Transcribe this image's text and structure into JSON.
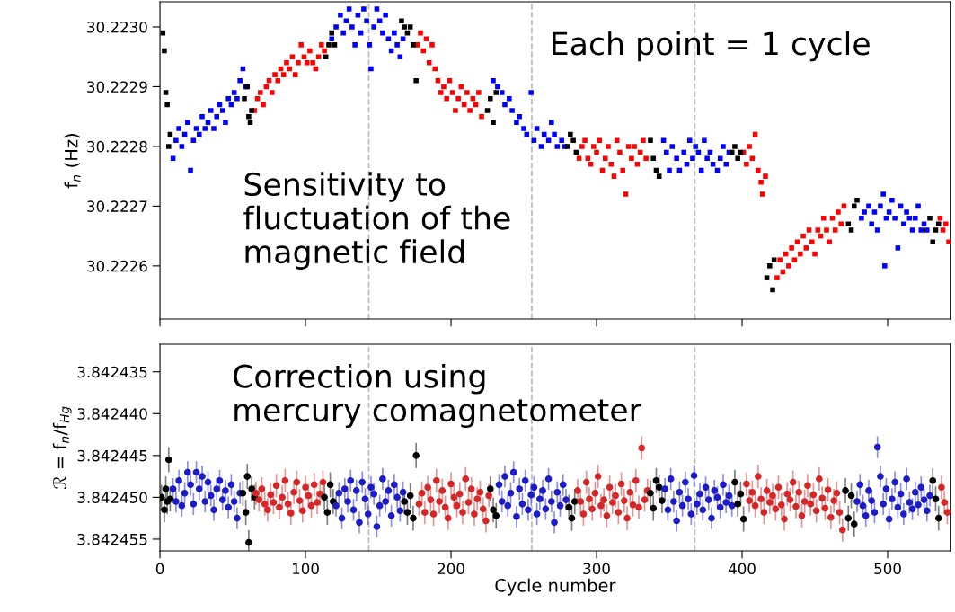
{
  "chart_data": [
    {
      "type": "scatter",
      "ylabel": "f$_{n}$ (Hz)",
      "xlim": [
        0,
        543
      ],
      "ylim": [
        30.222511,
        30.223042
      ],
      "xticks": [
        0,
        100,
        200,
        300,
        400,
        500
      ],
      "yticks": [
        {
          "value": 30.2226,
          "label": "30.2226"
        },
        {
          "value": 30.2227,
          "label": "30.2227"
        },
        {
          "value": 30.2228,
          "label": "30.2228"
        },
        {
          "value": 30.2229,
          "label": "30.2229"
        },
        {
          "value": 30.223,
          "label": "30.2230"
        }
      ],
      "tick_labels": "y",
      "marker": "square",
      "ref_lines": [
        {
          "axis": "x",
          "value": 143.5,
          "color": "#bbbbbb",
          "line_style": "dashed"
        },
        {
          "axis": "x",
          "value": 255.5,
          "color": "#bbbbbb",
          "line_style": "dashed"
        },
        {
          "axis": "x",
          "value": 367.5,
          "color": "#bbbbbb",
          "line_style": "dashed"
        }
      ],
      "annotations": [
        "Each point = 1 cycle",
        "Sensitivity to\nfluctuation of the\nmagnetic field"
      ],
      "series": [
        {
          "color": "#0000ff",
          "x": [
            9,
            11,
            13,
            15,
            17,
            19,
            21,
            23,
            25,
            27,
            29,
            31,
            33,
            35,
            37,
            39,
            41,
            43,
            45,
            47,
            49,
            51,
            53,
            55,
            57,
            59,
            118,
            121,
            124,
            126,
            128,
            130,
            132,
            134,
            136,
            138,
            140,
            142,
            144,
            145,
            147,
            149,
            151,
            153,
            155,
            157,
            159,
            161,
            163,
            165,
            167,
            229,
            232,
            235,
            237,
            240,
            242,
            245,
            247,
            250,
            252,
            255,
            257,
            259,
            262,
            264,
            267,
            269,
            271,
            273,
            276,
            278,
            346,
            348,
            350,
            352,
            355,
            357,
            360,
            362,
            364,
            366,
            368,
            370,
            372,
            374,
            376,
            378,
            380,
            383,
            385,
            387,
            389,
            391,
            482,
            484,
            487,
            489,
            491,
            493,
            495,
            497,
            498,
            499,
            501,
            503,
            505,
            507,
            509,
            511,
            513,
            515,
            517,
            519,
            521,
            523,
            525,
            527
          ],
          "values": [
            30.22278,
            30.22281,
            30.22283,
            30.2228,
            30.22282,
            30.22284,
            30.22276,
            30.22281,
            30.22283,
            30.22282,
            30.22285,
            30.22283,
            30.22284,
            30.22286,
            30.22283,
            30.22285,
            30.22287,
            30.22286,
            30.22284,
            30.22288,
            30.22287,
            30.22289,
            30.22288,
            30.22291,
            30.22293,
            30.2229,
            30.22298,
            30.223,
            30.22302,
            30.22299,
            30.22301,
            30.22303,
            30.223,
            30.22297,
            30.22302,
            30.22299,
            30.22303,
            30.22301,
            30.22297,
            30.22293,
            30.223,
            30.22303,
            30.22301,
            30.22299,
            30.22302,
            30.22298,
            30.22296,
            30.22299,
            30.22297,
            30.22295,
            30.22298,
            30.22291,
            30.2229,
            30.22289,
            30.22287,
            30.22288,
            30.22286,
            30.22284,
            30.22285,
            30.22283,
            30.22282,
            30.22289,
            30.22281,
            30.22283,
            30.2228,
            30.22282,
            30.22281,
            30.22284,
            30.22282,
            30.2228,
            30.22281,
            30.2228,
            30.22281,
            30.22279,
            30.22276,
            30.2228,
            30.22278,
            30.22276,
            30.22279,
            30.22277,
            30.22281,
            30.22278,
            30.2228,
            30.22279,
            30.22276,
            30.22281,
            30.22278,
            30.22279,
            30.22277,
            30.22276,
            30.22278,
            30.2228,
            30.22277,
            30.22279,
            30.22268,
            30.22269,
            30.2227,
            30.22267,
            30.22269,
            30.22266,
            30.2227,
            30.22272,
            30.2226,
            30.22268,
            30.22269,
            30.22271,
            30.22268,
            30.22263,
            30.2227,
            30.22267,
            30.22269,
            30.22268,
            30.22266,
            30.22268,
            30.2227,
            30.22266,
            30.22267,
            30.22266
          ]
        },
        {
          "color": "#ff0000",
          "x": [
            65,
            67,
            69,
            71,
            73,
            75,
            77,
            79,
            81,
            83,
            85,
            87,
            89,
            91,
            93,
            95,
            97,
            99,
            101,
            103,
            105,
            107,
            109,
            111,
            113,
            177,
            179,
            181,
            183,
            185,
            187,
            189,
            191,
            193,
            195,
            197,
            199,
            201,
            203,
            205,
            207,
            209,
            211,
            213,
            215,
            217,
            219,
            221,
            288,
            290,
            292,
            294,
            296,
            298,
            300,
            302,
            304,
            306,
            308,
            310,
            312,
            314,
            316,
            318,
            320,
            322,
            324,
            326,
            328,
            330,
            332,
            334,
            401,
            403,
            405,
            407,
            409,
            411,
            413,
            414,
            416,
            424,
            426,
            428,
            430,
            432,
            434,
            436,
            438,
            440,
            442,
            444,
            446,
            448,
            450,
            452,
            454,
            456,
            458,
            460,
            462,
            464,
            466,
            468,
            470,
            536,
            538,
            540,
            542
          ],
          "values": [
            30.22286,
            30.22288,
            30.22289,
            30.22287,
            30.2229,
            30.22291,
            30.22289,
            30.22292,
            30.22291,
            30.22293,
            30.22292,
            30.22294,
            30.22293,
            30.22295,
            30.22292,
            30.22294,
            30.22297,
            30.22295,
            30.22294,
            30.22296,
            30.22294,
            30.22293,
            30.22295,
            30.22297,
            30.22296,
            30.22297,
            30.22299,
            30.22296,
            30.22298,
            30.22294,
            30.22297,
            30.22293,
            30.22291,
            30.22289,
            30.2229,
            30.22288,
            30.22291,
            30.22289,
            30.22286,
            30.22288,
            30.2229,
            30.22287,
            30.22289,
            30.22286,
            30.22288,
            30.22287,
            30.22289,
            30.22285,
            30.22278,
            30.2228,
            30.22281,
            30.22278,
            30.22277,
            30.2228,
            30.22279,
            30.22281,
            30.22276,
            30.22278,
            30.2228,
            30.22277,
            30.22275,
            30.22281,
            30.22279,
            30.22276,
            30.22272,
            30.2228,
            30.22278,
            30.2228,
            30.22277,
            30.22279,
            30.22281,
            30.22278,
            30.22279,
            30.22277,
            30.2228,
            30.22278,
            30.22282,
            30.22276,
            30.22274,
            30.22272,
            30.22275,
            30.22258,
            30.22261,
            30.22259,
            30.22262,
            30.2226,
            30.22263,
            30.22261,
            30.22264,
            30.22262,
            30.22265,
            30.22263,
            30.22266,
            30.22264,
            30.22262,
            30.22266,
            30.22265,
            30.22268,
            30.22266,
            30.22264,
            30.22268,
            30.22266,
            30.22269,
            30.22267,
            30.2227,
            30.22268,
            30.22266,
            30.22267,
            30.22264
          ]
        },
        {
          "color": "#000000",
          "x": [
            2,
            3,
            4,
            5,
            6,
            7,
            58,
            60,
            61,
            62,
            63,
            114,
            116,
            118,
            120,
            166,
            168,
            170,
            172,
            174,
            176,
            225,
            227,
            229,
            231,
            280,
            282,
            284,
            286,
            337,
            339,
            341,
            343,
            393,
            395,
            397,
            399,
            417,
            419,
            421,
            422,
            473,
            475,
            477,
            479,
            529,
            531,
            533,
            535
          ],
          "values": [
            30.22299,
            30.22296,
            30.22289,
            30.22287,
            30.2228,
            30.22282,
            30.22288,
            30.2229,
            30.22285,
            30.22284,
            30.22286,
            30.22295,
            30.22297,
            30.22299,
            30.22297,
            30.22301,
            30.223,
            30.22299,
            30.223,
            30.22297,
            30.22291,
            30.22286,
            30.22288,
            30.22284,
            30.22289,
            30.2228,
            30.22282,
            30.22281,
            30.22279,
            30.22281,
            30.22278,
            30.22276,
            30.22275,
            30.22279,
            30.2228,
            30.22278,
            30.22279,
            30.22258,
            30.2226,
            30.22256,
            30.22261,
            30.22267,
            30.22266,
            30.2227,
            30.22271,
            30.22268,
            30.22264,
            30.22266,
            30.22267
          ]
        }
      ]
    },
    {
      "type": "scatter",
      "xlabel": "Cycle number",
      "ylabel": "ℛ = f$_{n}$/f$_{Hg}$",
      "xlim": [
        0,
        543
      ],
      "ylim": [
        3.8424564,
        3.8424317
      ],
      "xticks": [
        0,
        100,
        200,
        300,
        400,
        500
      ],
      "yticks": [
        3.842435,
        {
          "value": 3.84244,
          "label": "3.842440"
        },
        3.842445,
        {
          "value": 3.84245,
          "label": "3.842450"
        },
        3.842455
      ],
      "marker": "circle",
      "ref_lines": [
        {
          "axis": "x",
          "value": 143.5,
          "color": "#bbbbbb",
          "line_style": "dashed"
        },
        {
          "axis": "x",
          "value": 255.5,
          "color": "#bbbbbb",
          "line_style": "dashed"
        },
        {
          "axis": "x",
          "value": 367.5,
          "color": "#bbbbbb",
          "line_style": "dashed"
        }
      ],
      "annotations": [
        "Correction using\nmercury comagnetometer"
      ],
      "series": [
        {
          "color": "#000000",
          "x": [
            1,
            3,
            4,
            5,
            6,
            7
          ],
          "values": [
            3.84245,
            3.8424515,
            3.842449,
            3.8424505,
            3.8424455,
            3.8424502
          ],
          "errors": [
            1.5e-06,
            1.5e-06,
            1.5e-06,
            1.5e-06,
            1.5e-06,
            1.5e-06
          ]
        },
        {
          "color": "#1c1cc8",
          "x": [
            9,
            11,
            13,
            15,
            17,
            19,
            21,
            23,
            25,
            27,
            29,
            31,
            33,
            35,
            37,
            39,
            41,
            43,
            45,
            47,
            49,
            51,
            53,
            55
          ],
          "values": [
            3.842449,
            3.8424505,
            3.842448,
            3.842451,
            3.8424495,
            3.842447,
            3.8424485,
            3.8424508,
            3.842447,
            3.842449,
            3.8424475,
            3.8424505,
            3.8424482,
            3.8424498,
            3.8424515,
            3.842449,
            3.842448,
            3.8424503,
            3.8424492,
            3.8424512,
            3.8424485,
            3.8424505,
            3.8424525,
            3.8424495
          ],
          "errors": [
            1.3e-06,
            1.3e-06,
            1.3e-06,
            1.3e-06,
            1.3e-06,
            1.3e-06,
            1.3e-06,
            1.3e-06,
            1.3e-06,
            1.3e-06,
            1.3e-06,
            1.3e-06,
            1.3e-06,
            1.3e-06,
            1.3e-06,
            1.3e-06,
            1.3e-06,
            1.3e-06,
            1.3e-06,
            1.3e-06,
            1.3e-06,
            1.3e-06,
            1.3e-06,
            1.3e-06
          ]
        },
        {
          "color": "#000000",
          "x": [
            57,
            59,
            60,
            61,
            63,
            65
          ],
          "values": [
            3.8424495,
            3.8424518,
            3.8424475,
            3.8424554,
            3.842449,
            3.84245
          ],
          "errors": [
            1.5e-06,
            1.5e-06,
            1.5e-06,
            1.5e-06,
            1.5e-06,
            1.5e-06
          ]
        },
        {
          "color": "#d62728",
          "x": [
            66,
            68,
            70,
            72,
            74,
            76,
            78,
            80,
            82,
            84,
            86,
            88,
            90,
            92,
            94,
            96,
            98,
            100,
            102,
            104,
            106,
            108,
            110,
            112
          ],
          "values": [
            3.8424495,
            3.8424503,
            3.842449,
            3.8424508,
            3.8424515,
            3.8424497,
            3.8424506,
            3.8424486,
            3.8424512,
            3.84245,
            3.842448,
            3.8424508,
            3.8424519,
            3.8424494,
            3.8424482,
            3.8424504,
            3.8424516,
            3.8424488,
            3.8424498,
            3.842451,
            3.8424485,
            3.8424506,
            3.8424496,
            3.8424482
          ],
          "errors": [
            1.4e-06,
            1.4e-06,
            1.4e-06,
            1.4e-06,
            1.4e-06,
            1.4e-06,
            1.4e-06,
            1.4e-06,
            1.4e-06,
            1.4e-06,
            1.4e-06,
            1.4e-06,
            1.4e-06,
            1.4e-06,
            1.4e-06,
            1.4e-06,
            1.4e-06,
            1.4e-06,
            1.4e-06,
            1.4e-06,
            1.4e-06,
            1.4e-06,
            1.4e-06,
            1.4e-06
          ]
        },
        {
          "color": "#000000",
          "x": [
            113,
            115,
            117,
            119
          ],
          "values": [
            3.84245,
            3.8424518,
            3.8424485,
            3.8424505
          ],
          "errors": [
            1.5e-06,
            1.5e-06,
            1.5e-06,
            1.5e-06
          ]
        },
        {
          "color": "#1c1cc8",
          "x": [
            121,
            123,
            125,
            127,
            129,
            131,
            133,
            135,
            137,
            139,
            141,
            143,
            145,
            147,
            149,
            151,
            153,
            155,
            157,
            159,
            161,
            163,
            165,
            167
          ],
          "values": [
            3.842451,
            3.8424495,
            3.8424525,
            3.842449,
            3.8424505,
            3.842448,
            3.8424515,
            3.8424492,
            3.842453,
            3.8424482,
            3.8424502,
            3.842452,
            3.8424488,
            3.8424496,
            3.8424535,
            3.842451,
            3.8424478,
            3.8424505,
            3.8424492,
            3.8424522,
            3.8424485,
            3.84245,
            3.8424516,
            3.8424494
          ],
          "errors": [
            1.3e-06,
            1.3e-06,
            1.3e-06,
            1.3e-06,
            1.3e-06,
            1.3e-06,
            1.3e-06,
            1.3e-06,
            1.3e-06,
            1.3e-06,
            1.3e-06,
            1.3e-06,
            1.3e-06,
            1.3e-06,
            1.3e-06,
            1.3e-06,
            1.3e-06,
            1.3e-06,
            1.3e-06,
            1.3e-06,
            1.3e-06,
            1.3e-06,
            1.3e-06,
            1.3e-06
          ]
        },
        {
          "color": "#000000",
          "x": [
            168,
            170,
            172,
            174,
            176
          ],
          "values": [
            3.8424505,
            3.8424518,
            3.8424498,
            3.8424525,
            3.842445
          ],
          "errors": [
            1.5e-06,
            1.5e-06,
            1.5e-06,
            1.5e-06,
            1.5e-06
          ]
        },
        {
          "color": "#d62728",
          "x": [
            178,
            180,
            182,
            184,
            186,
            188,
            190,
            192,
            194,
            196,
            198,
            200,
            202,
            204,
            206,
            208,
            210,
            212,
            214,
            216,
            218,
            220,
            222,
            224,
            226
          ],
          "values": [
            3.8424508,
            3.8424495,
            3.8424518,
            3.8424488,
            3.8424503,
            3.842452,
            3.842448,
            3.8424505,
            3.8424492,
            3.8424512,
            3.8424525,
            3.8424484,
            3.84245,
            3.842451,
            3.8424496,
            3.8424518,
            3.8424478,
            3.8424506,
            3.842449,
            3.842452,
            3.8424502,
            3.8424494,
            3.8424514,
            3.8424528,
            3.8424498
          ],
          "errors": [
            1.4e-06,
            1.4e-06,
            1.4e-06,
            1.4e-06,
            1.4e-06,
            1.4e-06,
            1.4e-06,
            1.4e-06,
            1.4e-06,
            1.4e-06,
            1.4e-06,
            1.4e-06,
            1.4e-06,
            1.4e-06,
            1.4e-06,
            1.4e-06,
            1.4e-06,
            1.4e-06,
            1.4e-06,
            1.4e-06,
            1.4e-06,
            1.4e-06,
            1.4e-06,
            1.4e-06,
            1.4e-06
          ]
        },
        {
          "color": "#000000",
          "x": [
            227,
            229,
            231
          ],
          "values": [
            3.842449,
            3.8424515,
            3.8424522
          ],
          "errors": [
            1.5e-06,
            1.5e-06,
            1.5e-06
          ]
        },
        {
          "color": "#1c1cc8",
          "x": [
            233,
            235,
            237,
            239,
            241,
            243,
            245,
            247,
            249,
            251,
            253,
            255,
            257,
            259,
            261,
            263,
            265,
            267,
            269,
            271,
            273,
            275,
            277,
            279
          ],
          "values": [
            3.8424485,
            3.8424505,
            3.8424475,
            3.842451,
            3.8424495,
            3.842447,
            3.8424523,
            3.842449,
            3.8424508,
            3.842448,
            3.8424515,
            3.8424497,
            3.8424488,
            3.842452,
            3.8424502,
            3.8424492,
            3.8424514,
            3.8424478,
            3.8424505,
            3.842453,
            3.8424494,
            3.842451,
            3.8424485,
            3.8424503
          ],
          "errors": [
            1.3e-06,
            1.3e-06,
            1.3e-06,
            1.3e-06,
            1.3e-06,
            1.3e-06,
            1.3e-06,
            1.3e-06,
            1.3e-06,
            1.3e-06,
            1.3e-06,
            1.3e-06,
            1.3e-06,
            1.3e-06,
            1.3e-06,
            1.3e-06,
            1.3e-06,
            1.3e-06,
            1.3e-06,
            1.3e-06,
            1.3e-06,
            1.3e-06,
            1.3e-06,
            1.3e-06
          ]
        },
        {
          "color": "#000000",
          "x": [
            281,
            283,
            285
          ],
          "values": [
            3.8424512,
            3.8424525,
            3.8424505
          ],
          "errors": [
            1.5e-06,
            1.5e-06,
            1.5e-06
          ]
        },
        {
          "color": "#d62728",
          "x": [
            287,
            289,
            291,
            293,
            295,
            297,
            299,
            301,
            303,
            305,
            307,
            309,
            311,
            313,
            315,
            317,
            319,
            321,
            323,
            325,
            327,
            329,
            331,
            333,
            335
          ],
          "values": [
            3.8424492,
            3.8424505,
            3.842452,
            3.8424482,
            3.8424502,
            3.8424514,
            3.8424495,
            3.8424475,
            3.842451,
            3.8424503,
            3.8424522,
            3.8424488,
            3.8424506,
            3.8424498,
            3.8424518,
            3.8424484,
            3.8424504,
            3.8424525,
            3.8424494,
            3.8424509,
            3.842448,
            3.8424512,
            3.8424441,
            3.8424503,
            3.8424492
          ],
          "errors": [
            1.4e-06,
            1.4e-06,
            1.4e-06,
            1.4e-06,
            1.4e-06,
            1.4e-06,
            1.4e-06,
            1.4e-06,
            1.4e-06,
            1.4e-06,
            1.4e-06,
            1.4e-06,
            1.4e-06,
            1.4e-06,
            1.4e-06,
            1.4e-06,
            1.4e-06,
            1.4e-06,
            1.4e-06,
            1.4e-06,
            1.4e-06,
            1.4e-06,
            1.4e-06,
            1.4e-06,
            1.4e-06
          ]
        },
        {
          "color": "#000000",
          "x": [
            337,
            339,
            341,
            343,
            345
          ],
          "values": [
            3.8424495,
            3.8424513,
            3.842448,
            3.8424488,
            3.8424504
          ],
          "errors": [
            1.5e-06,
            1.5e-06,
            1.5e-06,
            1.5e-06,
            1.5e-06
          ]
        },
        {
          "color": "#1c1cc8",
          "x": [
            347,
            349,
            351,
            353,
            355,
            357,
            359,
            361,
            363,
            365,
            367,
            369,
            371,
            373,
            375,
            377,
            379,
            381,
            383,
            385,
            387,
            389,
            391,
            393
          ],
          "values": [
            3.842449,
            3.8424515,
            3.8424478,
            3.8424505,
            3.8424528,
            3.8424494,
            3.842451,
            3.8424482,
            3.8424502,
            3.842452,
            3.8424474,
            3.8424508,
            3.8424496,
            3.8424515,
            3.8424488,
            3.8424503,
            3.8424525,
            3.8424492,
            3.84245,
            3.8424512,
            3.8424485,
            3.8424506,
            3.8424498,
            3.842451
          ],
          "errors": [
            1.3e-06,
            1.3e-06,
            1.3e-06,
            1.3e-06,
            1.3e-06,
            1.3e-06,
            1.3e-06,
            1.3e-06,
            1.3e-06,
            1.3e-06,
            1.3e-06,
            1.3e-06,
            1.3e-06,
            1.3e-06,
            1.3e-06,
            1.3e-06,
            1.3e-06,
            1.3e-06,
            1.3e-06,
            1.3e-06,
            1.3e-06,
            1.3e-06,
            1.3e-06,
            1.3e-06
          ]
        },
        {
          "color": "#000000",
          "x": [
            395,
            397,
            399,
            401
          ],
          "values": [
            3.8424482,
            3.8424508,
            3.8424496,
            3.8424526
          ],
          "errors": [
            1.5e-06,
            1.5e-06,
            1.5e-06,
            1.5e-06
          ]
        },
        {
          "color": "#d62728",
          "x": [
            403,
            405,
            407,
            409,
            411,
            413,
            415,
            417,
            419,
            421,
            423,
            425,
            427,
            429,
            431,
            433,
            435,
            437,
            439,
            441,
            443,
            445,
            447,
            449,
            451,
            453,
            455,
            457,
            459,
            461,
            463,
            465,
            467,
            469
          ],
          "values": [
            3.8424484,
            3.8424504,
            3.8424494,
            3.842451,
            3.8424475,
            3.8424502,
            3.8424518,
            3.8424492,
            3.8424506,
            3.8424498,
            3.8424514,
            3.8424488,
            3.8424509,
            3.8424526,
            3.8424496,
            3.8424503,
            3.8424482,
            3.8424511,
            3.8424494,
            3.8424522,
            3.8424505,
            3.8424486,
            3.8424508,
            3.8424497,
            3.8424516,
            3.8424478,
            3.8424501,
            3.8424513,
            3.8424491,
            3.8424524,
            3.8424504,
            3.8424495,
            3.8424518,
            3.8424539
          ],
          "errors": [
            1.4e-06,
            1.4e-06,
            1.4e-06,
            1.4e-06,
            1.4e-06,
            1.4e-06,
            1.4e-06,
            1.4e-06,
            1.4e-06,
            1.4e-06,
            1.4e-06,
            1.4e-06,
            1.4e-06,
            1.4e-06,
            1.4e-06,
            1.4e-06,
            1.4e-06,
            1.4e-06,
            1.4e-06,
            1.4e-06,
            1.4e-06,
            1.4e-06,
            1.4e-06,
            1.4e-06,
            1.4e-06,
            1.4e-06,
            1.4e-06,
            1.4e-06,
            1.4e-06,
            1.4e-06,
            1.4e-06,
            1.4e-06,
            1.4e-06,
            1.4e-06
          ]
        },
        {
          "color": "#000000",
          "x": [
            471,
            473,
            475,
            477
          ],
          "values": [
            3.8424492,
            3.8424525,
            3.8424498,
            3.8424532
          ],
          "errors": [
            1.5e-06,
            1.5e-06,
            1.5e-06,
            1.5e-06
          ]
        },
        {
          "color": "#1c1cc8",
          "x": [
            479,
            481,
            483,
            485,
            487,
            489,
            491,
            493,
            495,
            497,
            499,
            501,
            503,
            505,
            507,
            509,
            511,
            513,
            515,
            517,
            519,
            521,
            523,
            525,
            527,
            529
          ],
          "values": [
            3.8424505,
            3.8424485,
            3.842451,
            3.8424522,
            3.8424492,
            3.8424504,
            3.8424518,
            3.842444,
            3.8424475,
            3.8424508,
            3.842449,
            3.8424526,
            3.8424502,
            3.8424482,
            3.8424512,
            3.8424496,
            3.842452,
            3.8424478,
            3.8424506,
            3.8424514,
            3.8424494,
            3.8424509,
            3.8424488,
            3.8424503,
            3.8424516,
            3.8424498
          ],
          "errors": [
            1.3e-06,
            1.3e-06,
            1.3e-06,
            1.3e-06,
            1.3e-06,
            1.3e-06,
            1.3e-06,
            1.3e-06,
            1.3e-06,
            1.3e-06,
            1.3e-06,
            1.3e-06,
            1.3e-06,
            1.3e-06,
            1.3e-06,
            1.3e-06,
            1.3e-06,
            1.3e-06,
            1.3e-06,
            1.3e-06,
            1.3e-06,
            1.3e-06,
            1.3e-06,
            1.3e-06,
            1.3e-06,
            1.3e-06
          ]
        },
        {
          "color": "#000000",
          "x": [
            531,
            533,
            535
          ],
          "values": [
            3.842448,
            3.8424502,
            3.8424525
          ],
          "errors": [
            1.5e-06,
            1.5e-06,
            1.5e-06
          ]
        },
        {
          "color": "#d62728",
          "x": [
            537,
            539,
            541
          ],
          "values": [
            3.8424488,
            3.8424506,
            3.8424518
          ],
          "errors": [
            1.4e-06,
            1.4e-06,
            1.4e-06
          ]
        }
      ]
    }
  ]
}
